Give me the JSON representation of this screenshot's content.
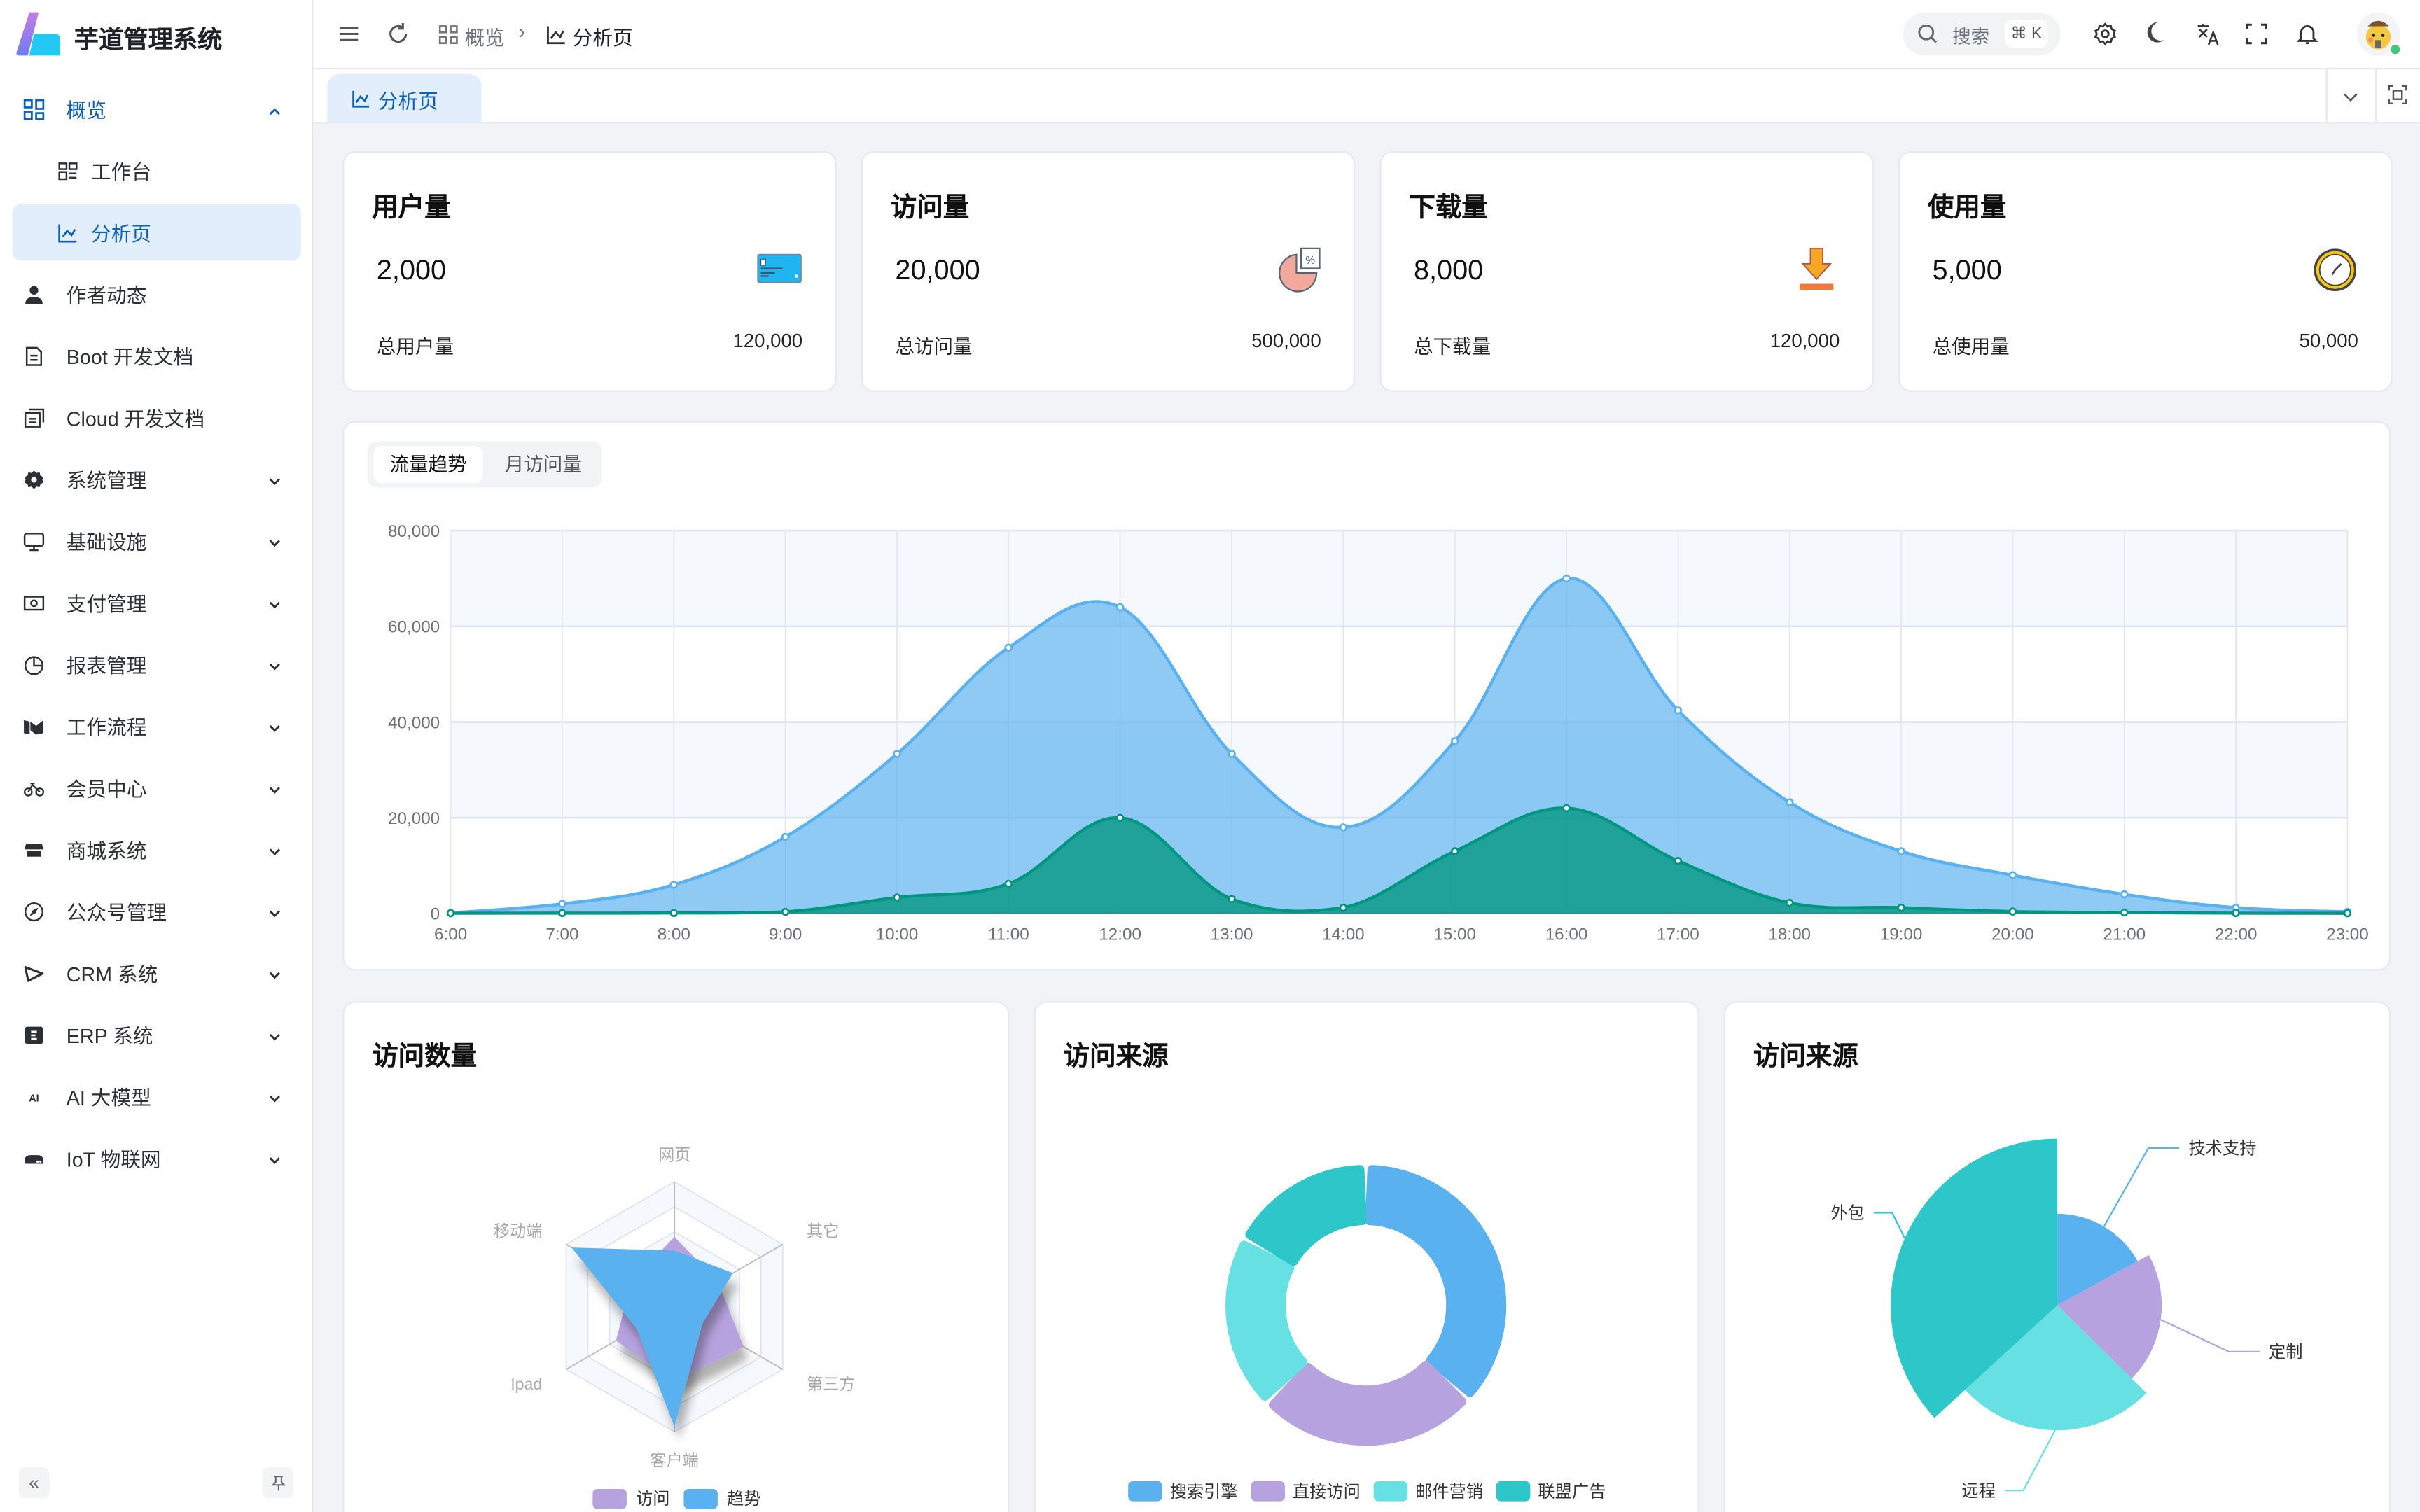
{
  "app": {
    "title": "芋道管理系统"
  },
  "sidebar": {
    "items": [
      {
        "label": "概览",
        "icon": "grid-icon",
        "state": "expanded-active"
      },
      {
        "label": "工作台",
        "icon": "dashboard-icon",
        "sub": true
      },
      {
        "label": "分析页",
        "icon": "line-chart-icon",
        "sub": true,
        "selected": true
      },
      {
        "label": "作者动态",
        "icon": "user-icon"
      },
      {
        "label": "Boot 开发文档",
        "icon": "document-icon"
      },
      {
        "label": "Cloud 开发文档",
        "icon": "documents-icon"
      },
      {
        "label": "系统管理",
        "icon": "gear-icon",
        "expandable": true
      },
      {
        "label": "基础设施",
        "icon": "monitor-icon",
        "expandable": true
      },
      {
        "label": "支付管理",
        "icon": "payment-icon",
        "expandable": true
      },
      {
        "label": "报表管理",
        "icon": "pie-icon",
        "expandable": true
      },
      {
        "label": "工作流程",
        "icon": "workflow-icon",
        "expandable": true
      },
      {
        "label": "会员中心",
        "icon": "bike-icon",
        "expandable": true
      },
      {
        "label": "商城系统",
        "icon": "store-icon",
        "expandable": true
      },
      {
        "label": "公众号管理",
        "icon": "compass-icon",
        "expandable": true
      },
      {
        "label": "CRM 系统",
        "icon": "crm-icon",
        "expandable": true
      },
      {
        "label": "ERP 系统",
        "icon": "erp-icon",
        "expandable": true
      },
      {
        "label": "AI 大模型",
        "icon": "ai-icon",
        "expandable": true
      },
      {
        "label": "IoT 物联网",
        "icon": "router-icon",
        "expandable": true
      }
    ]
  },
  "header": {
    "breadcrumb": [
      "概览",
      "分析页"
    ],
    "search": {
      "placeholder": "搜索",
      "shortcut": "⌘ K"
    }
  },
  "tabs": [
    {
      "label": "分析页",
      "active": true
    }
  ],
  "stats": [
    {
      "title": "用户量",
      "value": "2,000",
      "total_label": "总用户量",
      "total_value": "120,000",
      "icon": "credit-card-icon"
    },
    {
      "title": "访问量",
      "value": "20,000",
      "total_label": "总访问量",
      "total_value": "500,000",
      "icon": "pie-chart-icon"
    },
    {
      "title": "下载量",
      "value": "8,000",
      "total_label": "总下载量",
      "total_value": "120,000",
      "icon": "download-icon"
    },
    {
      "title": "使用量",
      "value": "5,000",
      "total_label": "总使用量",
      "total_value": "50,000",
      "icon": "clock-icon"
    }
  ],
  "trend": {
    "tabs": [
      "流量趋势",
      "月访问量"
    ],
    "active_tab": 0
  },
  "colors": {
    "primary": "#0960bd",
    "blue": "#5ab1ef",
    "teal": "#019680",
    "purple": "#b6a2de",
    "cyan": "#67e0e3",
    "teal2": "#2ec7c9"
  },
  "chart_data": [
    {
      "type": "area",
      "x": [
        "6:00",
        "7:00",
        "8:00",
        "9:00",
        "10:00",
        "11:00",
        "12:00",
        "13:00",
        "14:00",
        "15:00",
        "16:00",
        "17:00",
        "18:00",
        "19:00",
        "20:00",
        "21:00",
        "22:00",
        "23:00"
      ],
      "ylim": [
        0,
        80000
      ],
      "yticks": [
        "0",
        "20,000",
        "40,000",
        "60,000",
        "80,000"
      ],
      "grid": true,
      "smooth": true,
      "series": [
        {
          "values": [
            111,
            2000,
            6000,
            16000,
            33333,
            55555,
            64000,
            33333,
            18000,
            36000,
            70000,
            42444,
            23222,
            13000,
            8000,
            4000,
            1200,
            333
          ],
          "color": "#5ab1ef"
        },
        {
          "values": [
            33,
            66,
            88,
            333,
            3333,
            6200,
            20000,
            3000,
            1200,
            13000,
            22000,
            11000,
            2221,
            1201,
            390,
            198,
            60,
            30
          ],
          "color": "#019680"
        }
      ]
    },
    {
      "type": "radar",
      "title": "访问数量",
      "indicators": [
        "网页",
        "移动端",
        "Ipad",
        "客户端",
        "第三方",
        "其它"
      ],
      "max": 100,
      "series": [
        {
          "name": "访问",
          "values": [
            56,
            40,
            54,
            60,
            64,
            40
          ],
          "color": "#b6a2de"
        },
        {
          "name": "趋势",
          "values": [
            45,
            95,
            35,
            96,
            26,
            54
          ],
          "color": "#5ab1ef"
        }
      ],
      "legend": "bottom"
    },
    {
      "type": "pie",
      "subtype": "donut",
      "title": "访问来源",
      "slices": [
        {
          "name": "搜索引擎",
          "value": 1048,
          "color": "#5ab1ef"
        },
        {
          "name": "直接访问",
          "value": 735,
          "color": "#b6a2de"
        },
        {
          "name": "邮件营销",
          "value": 580,
          "color": "#67e0e3"
        },
        {
          "name": "联盟广告",
          "value": 484,
          "color": "#2ec7c9"
        }
      ],
      "legend": "bottom"
    },
    {
      "type": "pie",
      "subtype": "rose",
      "title": "访问来源",
      "slices": [
        {
          "name": "技术支持",
          "value": 484,
          "color": "#5ab1ef"
        },
        {
          "name": "定制",
          "value": 580,
          "color": "#b6a2de"
        },
        {
          "name": "远程",
          "value": 735,
          "color": "#67e0e3"
        },
        {
          "name": "外包",
          "value": 1048,
          "color": "#2ec7c9"
        }
      ]
    }
  ]
}
